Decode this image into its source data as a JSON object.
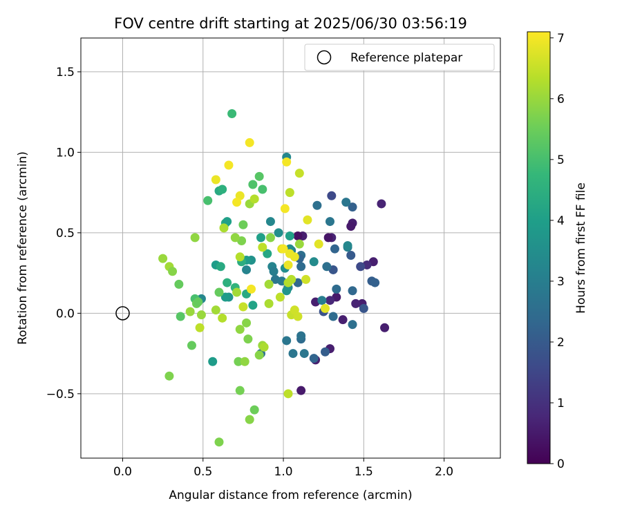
{
  "chart_data": {
    "type": "scatter",
    "title": "FOV centre drift starting at 2025/06/30 03:56:19",
    "xlabel": "Angular distance from reference (arcmin)",
    "ylabel": "Rotation from reference (arcmin)",
    "xlim": [
      -0.26,
      2.35
    ],
    "ylim": [
      -0.9,
      1.71
    ],
    "xticks": [
      0.0,
      0.5,
      1.0,
      1.5,
      2.0
    ],
    "xtick_labels": [
      "0.0",
      "0.5",
      "1.0",
      "1.5",
      "2.0"
    ],
    "yticks": [
      -0.5,
      0.0,
      0.5,
      1.0,
      1.5
    ],
    "ytick_labels": [
      "−0.5",
      "0.0",
      "0.5",
      "1.0",
      "1.5"
    ],
    "grid": true,
    "legend": {
      "position": "top-right",
      "entries": [
        "Reference platepar"
      ]
    },
    "reference_point": {
      "x": 0.0,
      "y": 0.0,
      "label": "Reference platepar"
    },
    "colorbar": {
      "label": "Hours from first FF file",
      "min": 0,
      "max": 7.1,
      "ticks": [
        0,
        1,
        2,
        3,
        4,
        5,
        6,
        7
      ],
      "tick_labels": [
        "0",
        "1",
        "2",
        "3",
        "4",
        "5",
        "6",
        "7"
      ],
      "colormap": "viridis"
    },
    "points": [
      {
        "x": 1.63,
        "y": -0.09,
        "h": 0.6
      },
      {
        "x": 1.61,
        "y": 0.68,
        "h": 0.7
      },
      {
        "x": 1.56,
        "y": 0.32,
        "h": 0.6
      },
      {
        "x": 1.52,
        "y": 0.3,
        "h": 0.9
      },
      {
        "x": 1.49,
        "y": 0.06,
        "h": 0.6
      },
      {
        "x": 1.45,
        "y": 0.06,
        "h": 0.7
      },
      {
        "x": 1.43,
        "y": 0.56,
        "h": 0.6
      },
      {
        "x": 1.42,
        "y": 0.54,
        "h": 0.5
      },
      {
        "x": 1.3,
        "y": 0.47,
        "h": 0.7
      },
      {
        "x": 1.28,
        "y": 0.47,
        "h": 0.4
      },
      {
        "x": 1.33,
        "y": 0.1,
        "h": 0.5
      },
      {
        "x": 1.29,
        "y": 0.08,
        "h": 0.8
      },
      {
        "x": 1.29,
        "y": -0.22,
        "h": 0.6
      },
      {
        "x": 1.2,
        "y": 0.07,
        "h": 0.6
      },
      {
        "x": 1.2,
        "y": -0.29,
        "h": 0.6
      },
      {
        "x": 1.12,
        "y": 0.48,
        "h": 0.6
      },
      {
        "x": 1.09,
        "y": 0.48,
        "h": 0.3
      },
      {
        "x": 1.11,
        "y": -0.48,
        "h": 0.5
      },
      {
        "x": 1.37,
        "y": -0.04,
        "h": 0.6
      },
      {
        "x": 1.48,
        "y": 0.29,
        "h": 1.6
      },
      {
        "x": 1.5,
        "y": 0.03,
        "h": 1.9
      },
      {
        "x": 1.55,
        "y": 0.2,
        "h": 2.1
      },
      {
        "x": 1.57,
        "y": 0.19,
        "h": 2.2
      },
      {
        "x": 1.42,
        "y": 0.36,
        "h": 2.0
      },
      {
        "x": 1.43,
        "y": 0.66,
        "h": 2.2
      },
      {
        "x": 1.3,
        "y": 0.73,
        "h": 1.6
      },
      {
        "x": 1.31,
        "y": 0.27,
        "h": 1.9
      },
      {
        "x": 1.32,
        "y": 0.4,
        "h": 2.3
      },
      {
        "x": 1.43,
        "y": 0.14,
        "h": 2.4
      },
      {
        "x": 1.27,
        "y": 0.29,
        "h": 2.6
      },
      {
        "x": 1.33,
        "y": 0.15,
        "h": 2.5
      },
      {
        "x": 1.31,
        "y": -0.02,
        "h": 2.5
      },
      {
        "x": 1.43,
        "y": -0.07,
        "h": 2.6
      },
      {
        "x": 1.25,
        "y": 0.01,
        "h": 1.8
      },
      {
        "x": 1.26,
        "y": -0.24,
        "h": 2.1
      },
      {
        "x": 1.19,
        "y": -0.28,
        "h": 2.3
      },
      {
        "x": 1.11,
        "y": -0.16,
        "h": 2.5
      },
      {
        "x": 1.11,
        "y": -0.14,
        "h": 2.7
      },
      {
        "x": 1.13,
        "y": -0.25,
        "h": 2.8
      },
      {
        "x": 1.06,
        "y": -0.25,
        "h": 2.8
      },
      {
        "x": 1.02,
        "y": -0.17,
        "h": 2.8
      },
      {
        "x": 1.09,
        "y": 0.19,
        "h": 2.4
      },
      {
        "x": 1.11,
        "y": 0.29,
        "h": 2.5
      },
      {
        "x": 1.11,
        "y": 0.36,
        "h": 2.6
      },
      {
        "x": 1.1,
        "y": 0.34,
        "h": 2.3
      },
      {
        "x": 1.21,
        "y": 0.67,
        "h": 2.6
      },
      {
        "x": 1.39,
        "y": 0.69,
        "h": 2.8
      },
      {
        "x": 1.29,
        "y": 0.57,
        "h": 2.8
      },
      {
        "x": 1.4,
        "y": 0.41,
        "h": 3.0
      },
      {
        "x": 1.4,
        "y": 0.42,
        "h": 3.3
      },
      {
        "x": 1.24,
        "y": 0.08,
        "h": 3.0
      },
      {
        "x": 1.19,
        "y": 0.32,
        "h": 3.4
      },
      {
        "x": 1.05,
        "y": 0.39,
        "h": 3.0
      },
      {
        "x": 1.02,
        "y": 0.97,
        "h": 3.3
      },
      {
        "x": 1.04,
        "y": 0.4,
        "h": 3.4
      },
      {
        "x": 1.01,
        "y": 0.28,
        "h": 3.5
      },
      {
        "x": 0.97,
        "y": 0.5,
        "h": 3.5
      },
      {
        "x": 0.92,
        "y": 0.57,
        "h": 3.3
      },
      {
        "x": 0.93,
        "y": 0.29,
        "h": 3.2
      },
      {
        "x": 0.95,
        "y": 0.21,
        "h": 2.8
      },
      {
        "x": 0.94,
        "y": 0.26,
        "h": 3.0
      },
      {
        "x": 0.99,
        "y": 0.2,
        "h": 2.9
      },
      {
        "x": 1.03,
        "y": 0.16,
        "h": 3.3
      },
      {
        "x": 1.02,
        "y": 0.14,
        "h": 3.7
      },
      {
        "x": 1.04,
        "y": 0.48,
        "h": 4.0
      },
      {
        "x": 0.86,
        "y": 0.47,
        "h": 4.0
      },
      {
        "x": 0.9,
        "y": 0.37,
        "h": 4.2
      },
      {
        "x": 0.8,
        "y": 0.33,
        "h": 3.6
      },
      {
        "x": 0.77,
        "y": 0.33,
        "h": 3.9
      },
      {
        "x": 0.77,
        "y": 0.27,
        "h": 3.2
      },
      {
        "x": 0.86,
        "y": -0.25,
        "h": 2.7
      },
      {
        "x": 0.81,
        "y": 0.05,
        "h": 4.1
      },
      {
        "x": 0.77,
        "y": 0.12,
        "h": 4.3
      },
      {
        "x": 0.66,
        "y": 0.1,
        "h": 3.7
      },
      {
        "x": 0.64,
        "y": 0.1,
        "h": 3.9
      },
      {
        "x": 0.49,
        "y": 0.09,
        "h": 3.3
      },
      {
        "x": 0.56,
        "y": -0.3,
        "h": 3.9
      },
      {
        "x": 0.64,
        "y": 0.56,
        "h": 4.3
      },
      {
        "x": 0.65,
        "y": 0.57,
        "h": 4.0
      },
      {
        "x": 0.6,
        "y": 0.76,
        "h": 4.3
      },
      {
        "x": 0.62,
        "y": 0.77,
        "h": 4.5
      },
      {
        "x": 0.58,
        "y": 0.3,
        "h": 3.9
      },
      {
        "x": 0.61,
        "y": 0.29,
        "h": 4.3
      },
      {
        "x": 0.74,
        "y": 0.32,
        "h": 4.4
      },
      {
        "x": 0.65,
        "y": 0.19,
        "h": 4.5
      },
      {
        "x": 0.7,
        "y": 0.16,
        "h": 4.6
      },
      {
        "x": 0.68,
        "y": 1.24,
        "h": 4.8
      },
      {
        "x": 0.53,
        "y": 0.7,
        "h": 5.0
      },
      {
        "x": 0.81,
        "y": 0.8,
        "h": 5.1
      },
      {
        "x": 0.85,
        "y": 0.85,
        "h": 5.2
      },
      {
        "x": 0.87,
        "y": 0.77,
        "h": 5.0
      },
      {
        "x": 0.45,
        "y": 0.09,
        "h": 5.0
      },
      {
        "x": 0.46,
        "y": 0.06,
        "h": 5.5
      },
      {
        "x": 0.47,
        "y": 0.07,
        "h": 5.4
      },
      {
        "x": 0.36,
        "y": -0.02,
        "h": 5.2
      },
      {
        "x": 0.35,
        "y": 0.18,
        "h": 5.4
      },
      {
        "x": 0.43,
        "y": -0.2,
        "h": 5.4
      },
      {
        "x": 0.72,
        "y": -0.3,
        "h": 5.6
      },
      {
        "x": 0.6,
        "y": 0.13,
        "h": 5.4
      },
      {
        "x": 0.6,
        "y": -0.8,
        "h": 5.7
      },
      {
        "x": 0.73,
        "y": -0.48,
        "h": 5.6
      },
      {
        "x": 0.76,
        "y": -0.3,
        "h": 5.9
      },
      {
        "x": 0.82,
        "y": -0.6,
        "h": 5.5
      },
      {
        "x": 0.79,
        "y": -0.66,
        "h": 5.8
      },
      {
        "x": 0.77,
        "y": -0.06,
        "h": 5.8
      },
      {
        "x": 0.73,
        "y": -0.1,
        "h": 5.9
      },
      {
        "x": 0.78,
        "y": -0.16,
        "h": 5.7
      },
      {
        "x": 0.85,
        "y": -0.26,
        "h": 5.8
      },
      {
        "x": 0.87,
        "y": -0.2,
        "h": 6.0
      },
      {
        "x": 0.88,
        "y": -0.21,
        "h": 6.2
      },
      {
        "x": 0.74,
        "y": 0.45,
        "h": 5.7
      },
      {
        "x": 0.75,
        "y": 0.55,
        "h": 5.5
      },
      {
        "x": 0.7,
        "y": 0.47,
        "h": 5.9
      },
      {
        "x": 0.63,
        "y": 0.53,
        "h": 6.2
      },
      {
        "x": 0.45,
        "y": 0.47,
        "h": 5.9
      },
      {
        "x": 0.25,
        "y": 0.34,
        "h": 6.0
      },
      {
        "x": 0.29,
        "y": 0.29,
        "h": 6.1
      },
      {
        "x": 0.31,
        "y": 0.26,
        "h": 5.8
      },
      {
        "x": 0.29,
        "y": -0.39,
        "h": 5.7
      },
      {
        "x": 0.42,
        "y": 0.01,
        "h": 6.0
      },
      {
        "x": 0.48,
        "y": -0.09,
        "h": 6.4
      },
      {
        "x": 0.49,
        "y": -0.01,
        "h": 6.0
      },
      {
        "x": 0.58,
        "y": 0.02,
        "h": 6.1
      },
      {
        "x": 0.62,
        "y": -0.03,
        "h": 6.3
      },
      {
        "x": 0.73,
        "y": 0.35,
        "h": 6.3
      },
      {
        "x": 0.71,
        "y": 0.13,
        "h": 6.1
      },
      {
        "x": 0.75,
        "y": 0.04,
        "h": 6.5
      },
      {
        "x": 0.79,
        "y": 0.68,
        "h": 6.0
      },
      {
        "x": 0.82,
        "y": 0.71,
        "h": 6.3
      },
      {
        "x": 0.87,
        "y": 0.41,
        "h": 6.4
      },
      {
        "x": 0.92,
        "y": 0.47,
        "h": 5.8
      },
      {
        "x": 0.91,
        "y": 0.18,
        "h": 6.1
      },
      {
        "x": 0.91,
        "y": 0.06,
        "h": 6.2
      },
      {
        "x": 0.98,
        "y": 0.1,
        "h": 6.4
      },
      {
        "x": 0.99,
        "y": 0.4,
        "h": 6.7
      },
      {
        "x": 1.03,
        "y": 0.19,
        "h": 6.3
      },
      {
        "x": 1.05,
        "y": 0.21,
        "h": 6.3
      },
      {
        "x": 1.04,
        "y": 0.75,
        "h": 6.4
      },
      {
        "x": 1.1,
        "y": 0.43,
        "h": 6.0
      },
      {
        "x": 1.1,
        "y": 0.87,
        "h": 6.5
      },
      {
        "x": 1.03,
        "y": -0.5,
        "h": 6.4
      },
      {
        "x": 1.05,
        "y": -0.01,
        "h": 6.5
      },
      {
        "x": 1.07,
        "y": 0.02,
        "h": 6.6
      },
      {
        "x": 1.09,
        "y": -0.02,
        "h": 6.6
      },
      {
        "x": 1.14,
        "y": 0.21,
        "h": 6.6
      },
      {
        "x": 1.15,
        "y": 0.58,
        "h": 6.8
      },
      {
        "x": 1.22,
        "y": 0.43,
        "h": 6.8
      },
      {
        "x": 1.26,
        "y": 0.03,
        "h": 6.8
      },
      {
        "x": 1.03,
        "y": 0.3,
        "h": 6.9
      },
      {
        "x": 1.07,
        "y": 0.35,
        "h": 6.9
      },
      {
        "x": 1.01,
        "y": 0.65,
        "h": 7.0
      },
      {
        "x": 1.02,
        "y": 0.94,
        "h": 7.0
      },
      {
        "x": 1.0,
        "y": 0.4,
        "h": 7.0
      },
      {
        "x": 1.04,
        "y": 0.37,
        "h": 6.9
      },
      {
        "x": 0.8,
        "y": 0.15,
        "h": 7.0
      },
      {
        "x": 0.79,
        "y": 1.06,
        "h": 7.0
      },
      {
        "x": 0.66,
        "y": 0.92,
        "h": 7.0
      },
      {
        "x": 0.58,
        "y": 0.83,
        "h": 6.9
      },
      {
        "x": 0.73,
        "y": 0.73,
        "h": 6.9
      },
      {
        "x": 0.71,
        "y": 0.69,
        "h": 7.0
      }
    ]
  }
}
